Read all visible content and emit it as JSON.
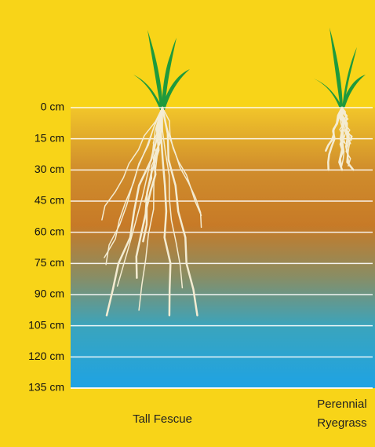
{
  "chart_data": {
    "type": "bar",
    "categories": [
      "Tall Fescue",
      "Perennial Ryegrass"
    ],
    "values": [
      100,
      30
    ],
    "color": "#f4ecd2",
    "ylim": [
      0,
      135
    ],
    "yticks": [
      {
        "value": 0,
        "label": "0 cm"
      },
      {
        "value": 15,
        "label": "15 cm"
      },
      {
        "value": 30,
        "label": "30 cm"
      },
      {
        "value": 45,
        "label": "45 cm"
      },
      {
        "value": 60,
        "label": "60 cm"
      },
      {
        "value": 75,
        "label": "75 cm"
      },
      {
        "value": 90,
        "label": "90 cm"
      },
      {
        "value": 105,
        "label": "105 cm"
      },
      {
        "value": 120,
        "label": "120 cm"
      },
      {
        "value": 135,
        "label": "135 cm"
      }
    ],
    "grid": true
  }
}
